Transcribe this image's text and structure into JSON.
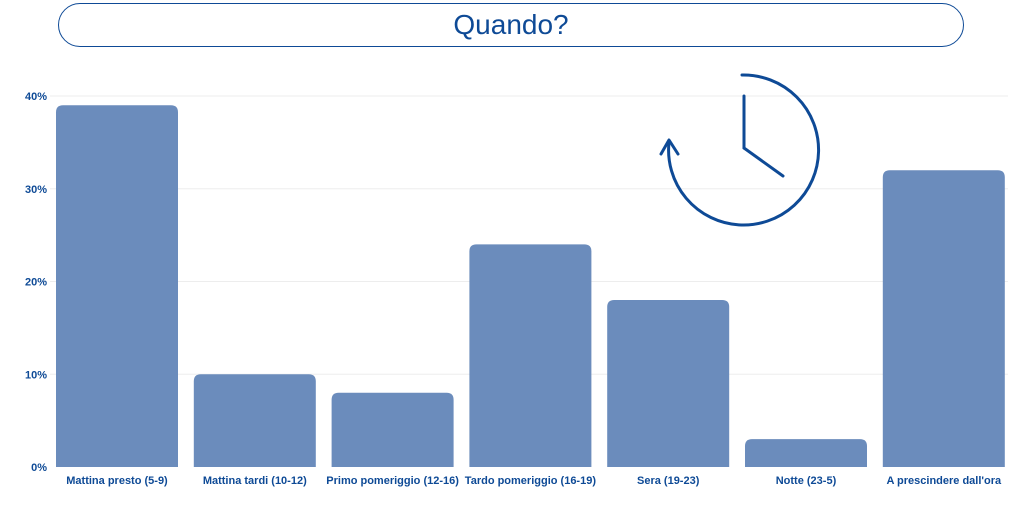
{
  "chart_data": {
    "type": "bar",
    "title": "Quando?",
    "categories": [
      "Mattina presto (5-9)",
      "Mattina tardi (10-12)",
      "Primo pomeriggio (12-16)",
      "Tardo pomeriggio (16-19)",
      "Sera (19-23)",
      "Notte (23-5)",
      "A prescindere dall'ora"
    ],
    "values": [
      39,
      10,
      8,
      24,
      18,
      3,
      32
    ],
    "yticks": [
      "0%",
      "10%",
      "20%",
      "30%",
      "40%"
    ],
    "ytick_values": [
      0,
      10,
      20,
      30,
      40
    ],
    "ylim": [
      0,
      40
    ],
    "grid": true,
    "colors": {
      "bar": "#6b8cbc",
      "text": "#0e4a96",
      "grid": "#ededed",
      "icon": "#0e4a96"
    }
  },
  "decoration": {
    "icon": "clock-arrow-icon"
  }
}
